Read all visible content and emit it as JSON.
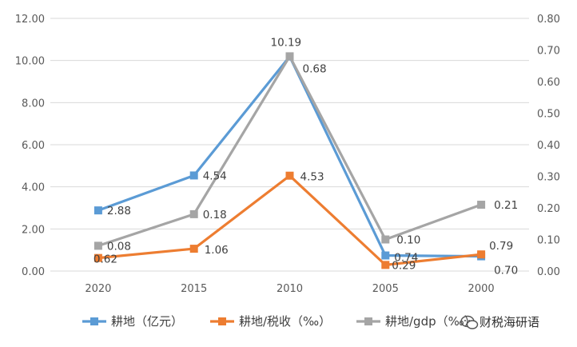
{
  "chart_data": {
    "type": "line",
    "categories": [
      "2020",
      "2015",
      "2010",
      "2005",
      "2000"
    ],
    "left_axis": {
      "ylim": [
        0,
        12
      ],
      "ticks": [
        "0.00",
        "2.00",
        "4.00",
        "6.00",
        "8.00",
        "10.00",
        "12.00"
      ]
    },
    "right_axis": {
      "ylim": [
        0,
        0.8
      ],
      "ticks": [
        "0.00",
        "0.10",
        "0.20",
        "0.30",
        "0.40",
        "0.50",
        "0.60",
        "0.70",
        "0.80"
      ]
    },
    "grid": true,
    "legend_position": "bottom",
    "series": [
      {
        "name": "耕地（亿元）",
        "axis": "left",
        "color": "#5B9BD5",
        "values": [
          2.88,
          4.54,
          10.19,
          0.74,
          0.7
        ],
        "labels": [
          "2.88",
          "4.54",
          "10.19",
          "0.74",
          "0.70"
        ]
      },
      {
        "name": "耕地/税收（‰）",
        "axis": "left",
        "color": "#ED7D31",
        "values": [
          0.62,
          1.06,
          4.53,
          0.29,
          0.79
        ],
        "labels": [
          "0.62",
          "1.06",
          "4.53",
          "0.29",
          "0.79"
        ]
      },
      {
        "name": "耕地/gdp（‰）",
        "axis": "right",
        "color": "#A5A5A5",
        "values": [
          0.08,
          0.18,
          0.68,
          0.1,
          0.21
        ],
        "labels": [
          "0.08",
          "0.18",
          "0.68",
          "0.10",
          "0.21"
        ]
      }
    ]
  },
  "watermark": {
    "text": "财税海研语",
    "icon": "wechat-icon"
  }
}
